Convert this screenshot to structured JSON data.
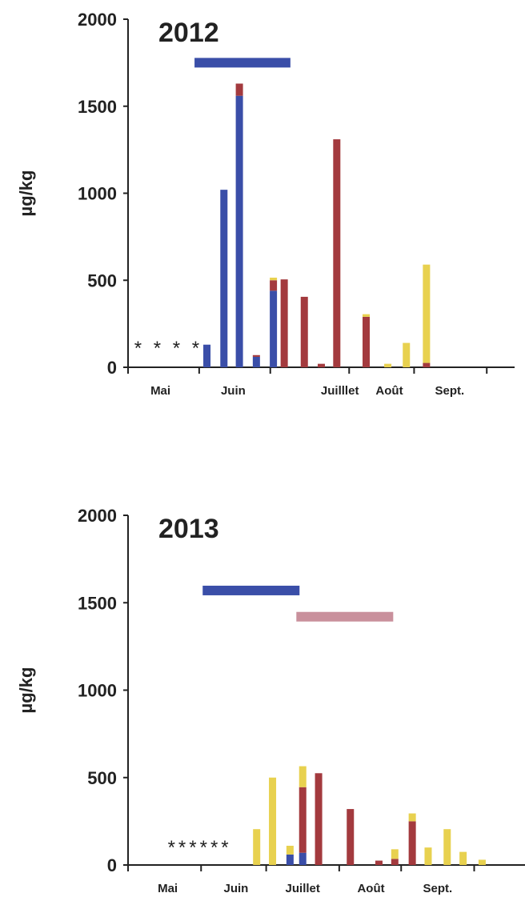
{
  "colors": {
    "blue": "#3a4ea8",
    "red": "#a33a3e",
    "yellow": "#e8d14f",
    "pink": "#c9909c",
    "axis": "#222222"
  },
  "chart_data": [
    {
      "type": "bar",
      "title": "2012",
      "ylabel": "µg/kg",
      "ylim": [
        0,
        2000
      ],
      "yticks": [
        "0",
        "500",
        "1000",
        "1500",
        "2000"
      ],
      "xmax": 25,
      "month_labels": [
        {
          "label": "Mai",
          "center": 2.1
        },
        {
          "label": "Juin",
          "center": 6.8
        },
        {
          "label": "Juilllet",
          "center": 13.7
        },
        {
          "label": "Août",
          "center": 16.9
        },
        {
          "label": "Sept.",
          "center": 20.8
        }
      ],
      "month_boundaries": [
        0,
        4.6,
        9.2,
        14.3,
        18.5,
        23.2
      ],
      "asterisks": {
        "text": "* * * *",
        "x": 0.4,
        "y": 120
      },
      "bars": [
        {
          "x": 5.1,
          "blue": 130,
          "red": 0,
          "yellow": 0
        },
        {
          "x": 6.2,
          "blue": 1020,
          "red": 0,
          "yellow": 0
        },
        {
          "x": 7.2,
          "blue": 1560,
          "red": 70,
          "yellow": 0
        },
        {
          "x": 8.3,
          "blue": 60,
          "red": 10,
          "yellow": 0
        },
        {
          "x": 9.4,
          "blue": 440,
          "red": 60,
          "yellow": 15
        },
        {
          "x": 10.1,
          "blue": 0,
          "red": 505,
          "yellow": 0
        },
        {
          "x": 11.4,
          "blue": 0,
          "red": 405,
          "yellow": 0
        },
        {
          "x": 12.5,
          "blue": 0,
          "red": 20,
          "yellow": 0
        },
        {
          "x": 13.5,
          "blue": 0,
          "red": 1310,
          "yellow": 0
        },
        {
          "x": 15.4,
          "blue": 0,
          "red": 290,
          "yellow": 15
        },
        {
          "x": 16.8,
          "blue": 0,
          "red": 0,
          "yellow": 20
        },
        {
          "x": 18.0,
          "blue": 0,
          "red": 0,
          "yellow": 140
        },
        {
          "x": 19.3,
          "blue": 0,
          "red": 25,
          "yellow": 565
        }
      ],
      "periods": [
        {
          "color": "blue",
          "x0": 4.3,
          "x1": 10.5,
          "y": 1750
        }
      ]
    },
    {
      "type": "bar",
      "title": "2013",
      "ylabel": "µg/kg",
      "ylim": [
        0,
        2000
      ],
      "yticks": [
        "0",
        "500",
        "1000",
        "1500",
        "2000"
      ],
      "xmax": 25,
      "month_labels": [
        {
          "label": "Mai",
          "center": 2.5
        },
        {
          "label": "Juin",
          "center": 6.8
        },
        {
          "label": "Juillet",
          "center": 11.0
        },
        {
          "label": "Août",
          "center": 15.3
        },
        {
          "label": "Sept.",
          "center": 19.5
        }
      ],
      "month_boundaries": [
        0,
        4.6,
        8.7,
        13.3,
        17.2,
        21.8
      ],
      "asterisks": {
        "text": "******",
        "x": 2.5,
        "y": 110
      },
      "bars": [
        {
          "x": 8.1,
          "blue": 0,
          "red": 0,
          "yellow": 205
        },
        {
          "x": 9.1,
          "blue": 0,
          "red": 0,
          "yellow": 500
        },
        {
          "x": 10.2,
          "blue": 60,
          "red": 0,
          "yellow": 50
        },
        {
          "x": 11.0,
          "blue": 70,
          "red": 375,
          "yellow": 120
        },
        {
          "x": 12.0,
          "blue": 0,
          "red": 525,
          "yellow": 0
        },
        {
          "x": 14.0,
          "blue": 0,
          "red": 320,
          "yellow": 0
        },
        {
          "x": 15.8,
          "blue": 0,
          "red": 25,
          "yellow": 0
        },
        {
          "x": 16.8,
          "blue": 0,
          "red": 35,
          "yellow": 55
        },
        {
          "x": 17.9,
          "blue": 0,
          "red": 250,
          "yellow": 45
        },
        {
          "x": 18.9,
          "blue": 0,
          "red": 0,
          "yellow": 100
        },
        {
          "x": 20.1,
          "blue": 0,
          "red": 0,
          "yellow": 205
        },
        {
          "x": 21.1,
          "blue": 0,
          "red": 0,
          "yellow": 75
        },
        {
          "x": 22.3,
          "blue": 0,
          "red": 0,
          "yellow": 30
        }
      ],
      "periods": [
        {
          "color": "blue",
          "x0": 4.7,
          "x1": 10.8,
          "y": 1570
        },
        {
          "color": "pink",
          "x0": 10.6,
          "x1": 16.7,
          "y": 1420
        }
      ]
    }
  ]
}
